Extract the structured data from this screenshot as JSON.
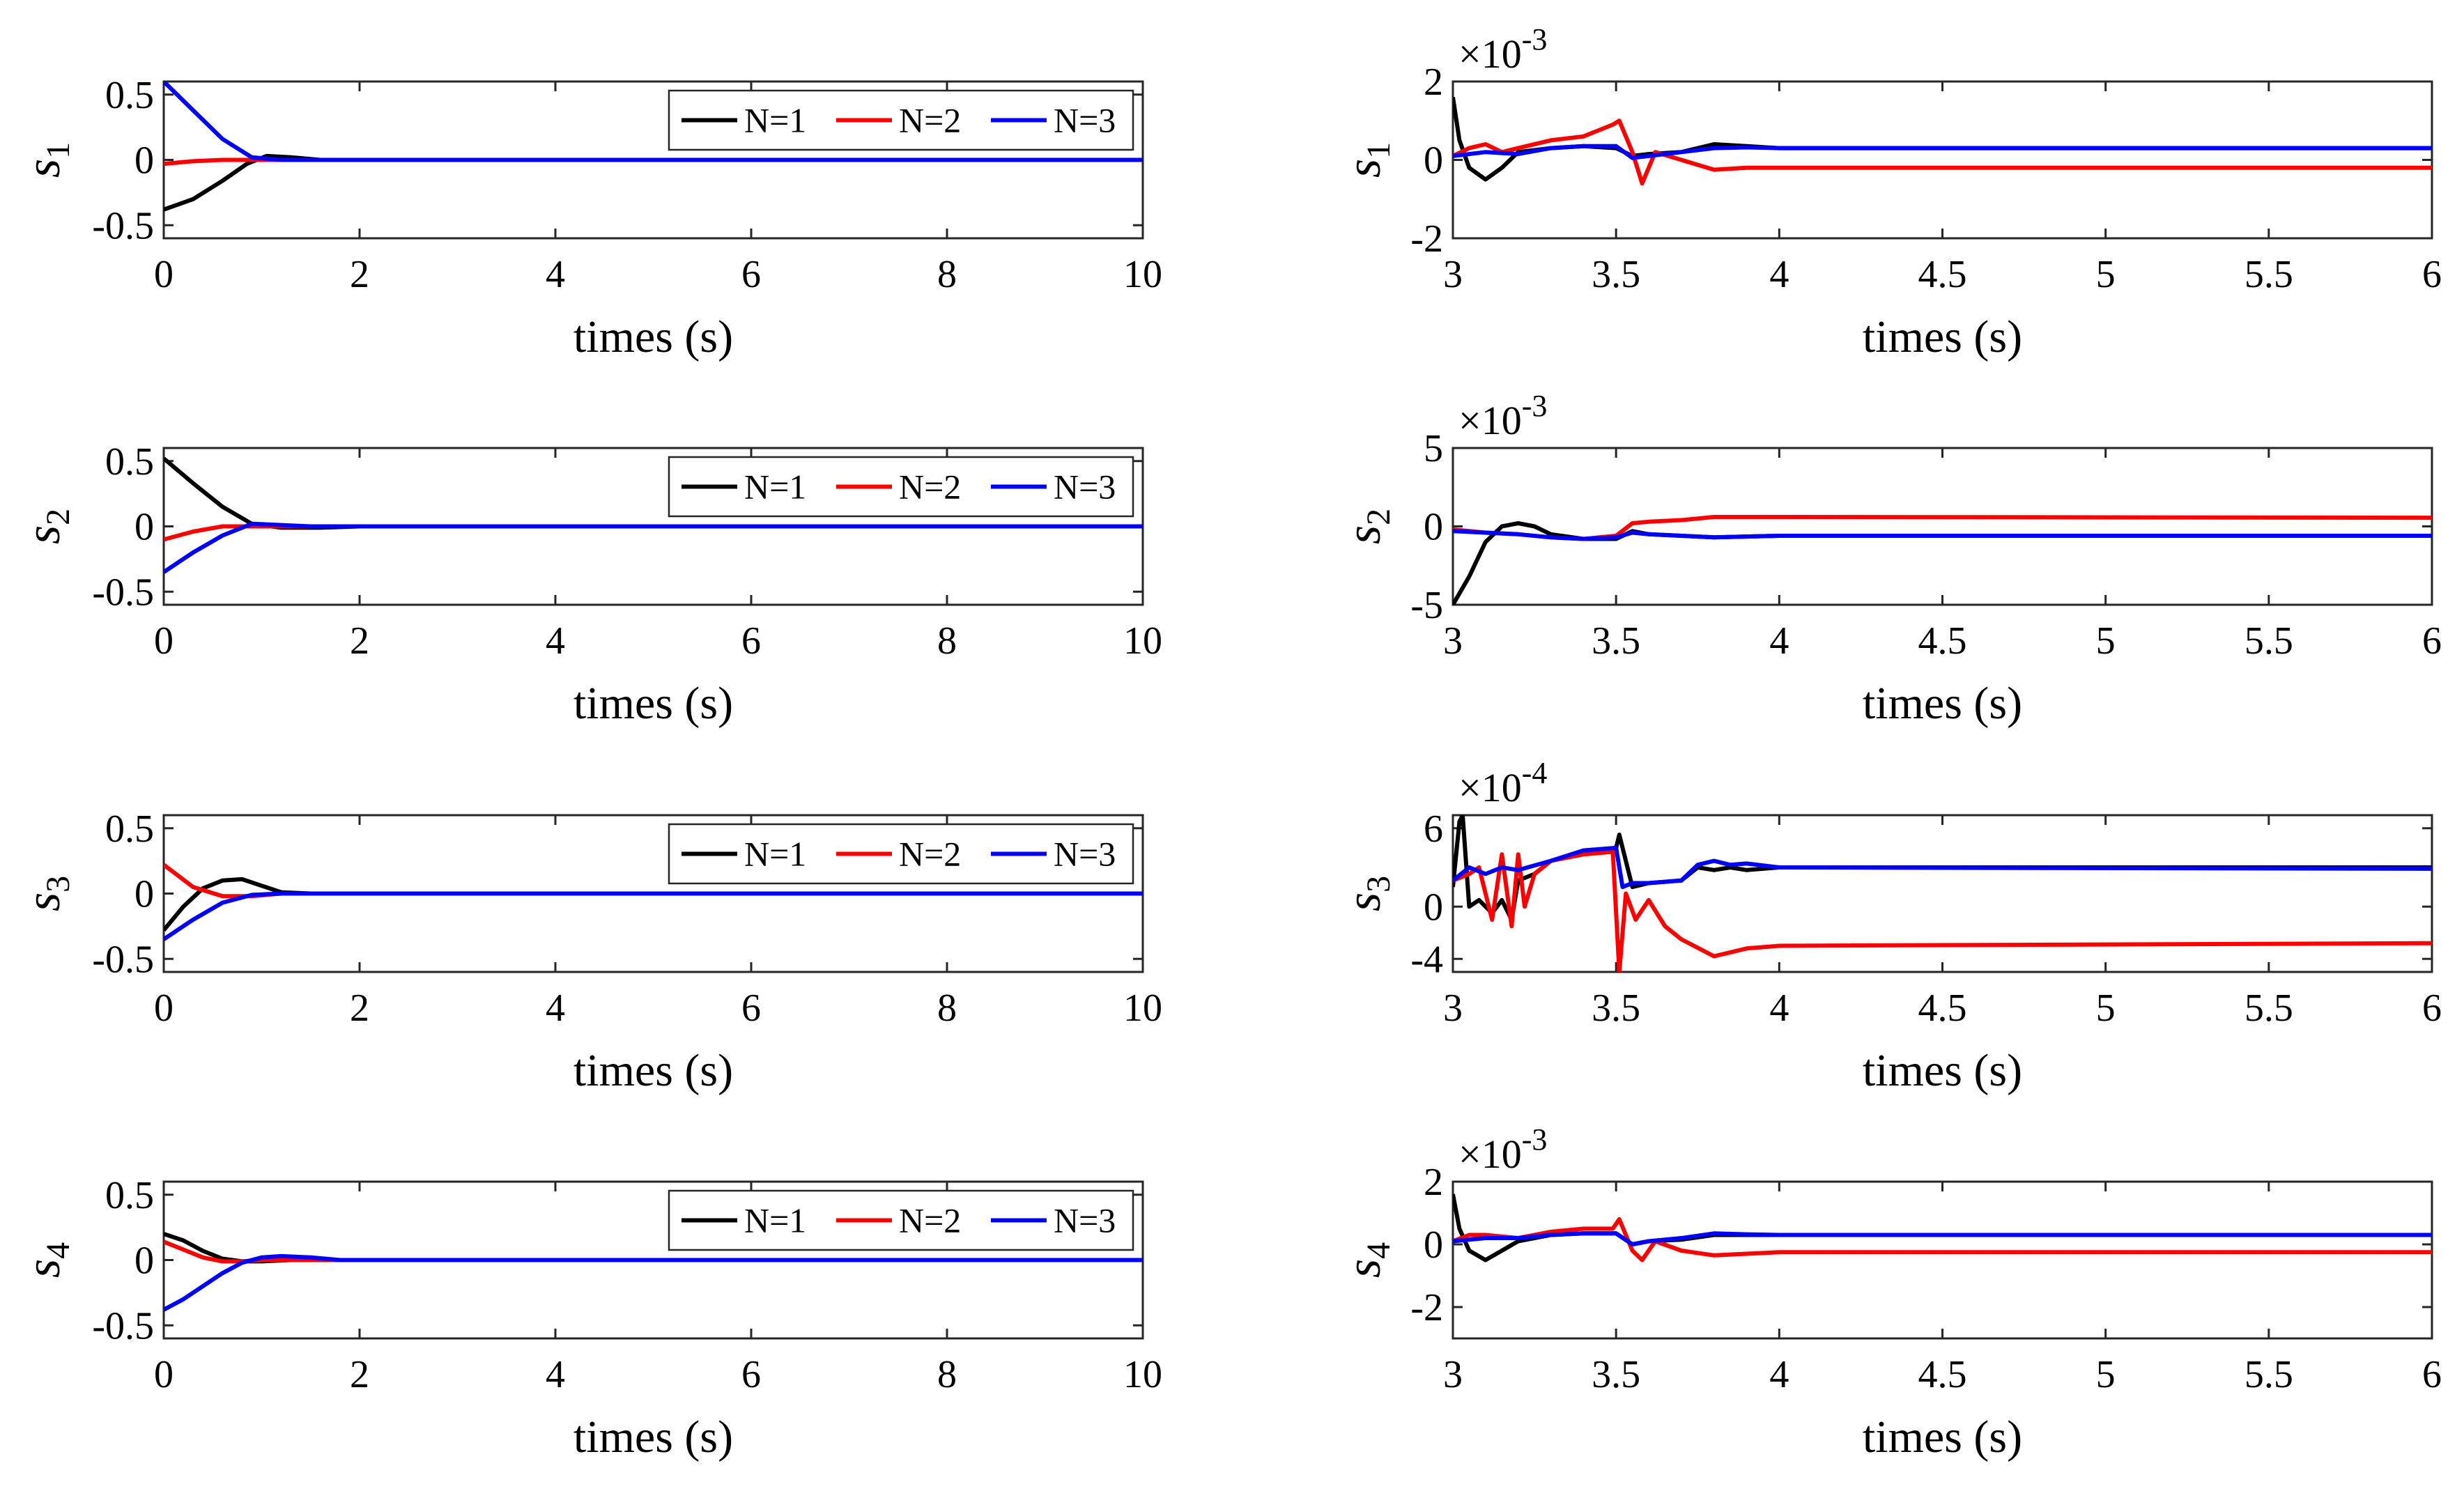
{
  "figure": {
    "x_axis_label": "times (s)",
    "series_names": [
      "N=1",
      "N=2",
      "N=3"
    ],
    "series_colors": [
      "#000000",
      "#ff0000",
      "#0000ff"
    ]
  },
  "chart_data": [
    {
      "type": "line",
      "id": "left-1",
      "ylabel_base": "s",
      "ylabel_sub": "1",
      "xlim": [
        0,
        10
      ],
      "ylim": [
        -0.6,
        0.6
      ],
      "xticks": [
        0,
        2,
        4,
        6,
        8,
        10
      ],
      "xtick_labels": [
        "0",
        "2",
        "4",
        "6",
        "8",
        "10"
      ],
      "yticks": [
        -0.5,
        0,
        0.5
      ],
      "ytick_labels": [
        "-0.5",
        "0",
        "0.5"
      ],
      "exponent_label": "",
      "legend": [
        "N=1",
        "N=2",
        "N=3"
      ],
      "xlabel": "times (s)",
      "series": [
        {
          "name": "N=1",
          "color": "#000000",
          "x": [
            0,
            0.3,
            0.6,
            0.85,
            1.05,
            1.3,
            1.6,
            2,
            10
          ],
          "y": [
            -0.38,
            -0.3,
            -0.16,
            -0.03,
            0.03,
            0.02,
            0.0,
            0.0,
            0.0
          ]
        },
        {
          "name": "N=2",
          "color": "#ff0000",
          "x": [
            0,
            0.3,
            0.6,
            0.9,
            1.2,
            10
          ],
          "y": [
            -0.03,
            -0.01,
            0.0,
            0.0,
            0.0,
            0.0
          ]
        },
        {
          "name": "N=3",
          "color": "#0000ff",
          "x": [
            0,
            0.3,
            0.6,
            0.9,
            1.2,
            1.5,
            10
          ],
          "y": [
            0.6,
            0.38,
            0.16,
            0.02,
            0.0,
            0.0,
            0.0
          ]
        }
      ]
    },
    {
      "type": "line",
      "id": "right-1",
      "ylabel_base": "s",
      "ylabel_sub": "1",
      "xlim": [
        3,
        6
      ],
      "ylim": [
        -2,
        2
      ],
      "xticks": [
        3,
        3.5,
        4,
        4.5,
        5,
        5.5,
        6
      ],
      "xtick_labels": [
        "3",
        "3.5",
        "4",
        "4.5",
        "5",
        "5.5",
        "6"
      ],
      "yticks": [
        -2,
        0,
        2
      ],
      "ytick_labels": [
        "-2",
        "0",
        "2"
      ],
      "exponent_label": "×10",
      "exponent_power": "-3",
      "legend": [],
      "xlabel": "times (s)",
      "series": [
        {
          "name": "N=1",
          "color": "#000000",
          "x": [
            3,
            3.02,
            3.05,
            3.1,
            3.15,
            3.2,
            3.3,
            3.4,
            3.5,
            3.55,
            3.6,
            3.7,
            3.8,
            3.9,
            4,
            6
          ],
          "y": [
            1.6,
            0.5,
            -0.2,
            -0.5,
            -0.2,
            0.2,
            0.3,
            0.35,
            0.3,
            0.1,
            0.15,
            0.2,
            0.4,
            0.35,
            0.3,
            0.3
          ]
        },
        {
          "name": "N=2",
          "color": "#ff0000",
          "x": [
            3,
            3.05,
            3.1,
            3.15,
            3.2,
            3.3,
            3.4,
            3.49,
            3.51,
            3.55,
            3.58,
            3.62,
            3.7,
            3.8,
            3.9,
            4,
            6
          ],
          "y": [
            0.1,
            0.3,
            0.4,
            0.2,
            0.3,
            0.5,
            0.6,
            0.9,
            1.0,
            0.2,
            -0.6,
            0.2,
            0.0,
            -0.25,
            -0.2,
            -0.2,
            -0.2
          ]
        },
        {
          "name": "N=3",
          "color": "#0000ff",
          "x": [
            3,
            3.1,
            3.2,
            3.3,
            3.4,
            3.5,
            3.55,
            3.6,
            3.7,
            3.8,
            3.9,
            4,
            6
          ],
          "y": [
            0.1,
            0.2,
            0.15,
            0.3,
            0.35,
            0.35,
            0.05,
            0.1,
            0.2,
            0.3,
            0.32,
            0.3,
            0.3
          ]
        }
      ]
    },
    {
      "type": "line",
      "id": "left-2",
      "ylabel_base": "s",
      "ylabel_sub": "2",
      "xlim": [
        0,
        10
      ],
      "ylim": [
        -0.6,
        0.6
      ],
      "xticks": [
        0,
        2,
        4,
        6,
        8,
        10
      ],
      "xtick_labels": [
        "0",
        "2",
        "4",
        "6",
        "8",
        "10"
      ],
      "yticks": [
        -0.5,
        0,
        0.5
      ],
      "ytick_labels": [
        "-0.5",
        "0",
        "0.5"
      ],
      "exponent_label": "",
      "legend": [
        "N=1",
        "N=2",
        "N=3"
      ],
      "xlabel": "times (s)",
      "series": [
        {
          "name": "N=1",
          "color": "#000000",
          "x": [
            0,
            0.3,
            0.6,
            0.9,
            1.2,
            1.6,
            2,
            10
          ],
          "y": [
            0.52,
            0.33,
            0.15,
            0.02,
            -0.01,
            -0.01,
            0.0,
            0.0
          ]
        },
        {
          "name": "N=2",
          "color": "#ff0000",
          "x": [
            0,
            0.3,
            0.6,
            0.9,
            1.2,
            10
          ],
          "y": [
            -0.1,
            -0.04,
            0.0,
            0.0,
            0.0,
            0.0
          ]
        },
        {
          "name": "N=3",
          "color": "#0000ff",
          "x": [
            0,
            0.3,
            0.6,
            0.9,
            1.2,
            1.5,
            10
          ],
          "y": [
            -0.35,
            -0.2,
            -0.07,
            0.02,
            0.01,
            0.0,
            0.0
          ]
        }
      ]
    },
    {
      "type": "line",
      "id": "right-2",
      "ylabel_base": "s",
      "ylabel_sub": "2",
      "xlim": [
        3,
        6
      ],
      "ylim": [
        -5,
        5
      ],
      "xticks": [
        3,
        3.5,
        4,
        4.5,
        5,
        5.5,
        6
      ],
      "xtick_labels": [
        "3",
        "3.5",
        "4",
        "4.5",
        "5",
        "5.5",
        "6"
      ],
      "yticks": [
        -5,
        0,
        5
      ],
      "ytick_labels": [
        "-5",
        "0",
        "5"
      ],
      "exponent_label": "×10",
      "exponent_power": "-3",
      "legend": [],
      "xlabel": "times (s)",
      "series": [
        {
          "name": "N=1",
          "color": "#000000",
          "x": [
            3,
            3.05,
            3.1,
            3.15,
            3.2,
            3.25,
            3.3,
            3.4,
            3.5,
            3.55,
            3.6,
            3.7,
            3.8,
            4,
            6
          ],
          "y": [
            -5.0,
            -3.2,
            -1.0,
            0.0,
            0.2,
            0.0,
            -0.5,
            -0.8,
            -0.8,
            -0.3,
            -0.5,
            -0.6,
            -0.7,
            -0.6,
            -0.6
          ]
        },
        {
          "name": "N=2",
          "color": "#ff0000",
          "x": [
            3,
            3.1,
            3.2,
            3.3,
            3.4,
            3.5,
            3.55,
            3.6,
            3.7,
            3.8,
            4,
            6
          ],
          "y": [
            -0.2,
            -0.4,
            -0.5,
            -0.7,
            -0.8,
            -0.6,
            0.2,
            0.3,
            0.4,
            0.6,
            0.6,
            0.55
          ]
        },
        {
          "name": "N=3",
          "color": "#0000ff",
          "x": [
            3,
            3.1,
            3.2,
            3.3,
            3.4,
            3.5,
            3.55,
            3.6,
            3.7,
            3.8,
            4,
            6
          ],
          "y": [
            -0.3,
            -0.4,
            -0.5,
            -0.7,
            -0.8,
            -0.7,
            -0.4,
            -0.5,
            -0.6,
            -0.7,
            -0.6,
            -0.6
          ]
        }
      ]
    },
    {
      "type": "line",
      "id": "left-3",
      "ylabel_base": "s",
      "ylabel_sub": "3",
      "xlim": [
        0,
        10
      ],
      "ylim": [
        -0.6,
        0.6
      ],
      "xticks": [
        0,
        2,
        4,
        6,
        8,
        10
      ],
      "xtick_labels": [
        "0",
        "2",
        "4",
        "6",
        "8",
        "10"
      ],
      "yticks": [
        -0.5,
        0,
        0.5
      ],
      "ytick_labels": [
        "-0.5",
        "0",
        "0.5"
      ],
      "exponent_label": "",
      "legend": [
        "N=1",
        "N=2",
        "N=3"
      ],
      "xlabel": "times (s)",
      "series": [
        {
          "name": "N=1",
          "color": "#000000",
          "x": [
            0,
            0.2,
            0.4,
            0.6,
            0.8,
            1.0,
            1.2,
            1.5,
            10
          ],
          "y": [
            -0.28,
            -0.1,
            0.04,
            0.1,
            0.11,
            0.06,
            0.01,
            0.0,
            0.0
          ]
        },
        {
          "name": "N=2",
          "color": "#ff0000",
          "x": [
            0,
            0.3,
            0.6,
            0.9,
            1.2,
            1.7,
            10
          ],
          "y": [
            0.22,
            0.05,
            -0.02,
            -0.02,
            0.0,
            0.0,
            0.0
          ]
        },
        {
          "name": "N=3",
          "color": "#0000ff",
          "x": [
            0,
            0.3,
            0.6,
            0.9,
            1.2,
            10
          ],
          "y": [
            -0.35,
            -0.2,
            -0.07,
            -0.01,
            0.0,
            0.0
          ]
        }
      ]
    },
    {
      "type": "line",
      "id": "right-3",
      "ylabel_base": "s",
      "ylabel_sub": "3",
      "xlim": [
        3,
        6
      ],
      "ylim": [
        -5,
        7
      ],
      "xticks": [
        3,
        3.5,
        4,
        4.5,
        5,
        5.5,
        6
      ],
      "xtick_labels": [
        "3",
        "3.5",
        "4",
        "4.5",
        "5",
        "5.5",
        "6"
      ],
      "yticks": [
        -4,
        0,
        6
      ],
      "ytick_labels": [
        "-4",
        "0",
        "6"
      ],
      "exponent_label": "×10",
      "exponent_power": "-4",
      "legend": [],
      "xlabel": "times (s)",
      "series": [
        {
          "name": "N=1",
          "color": "#000000",
          "x": [
            3,
            3.02,
            3.03,
            3.05,
            3.08,
            3.12,
            3.15,
            3.18,
            3.2,
            3.25,
            3.3,
            3.4,
            3.5,
            3.51,
            3.55,
            3.6,
            3.7,
            3.75,
            3.8,
            3.85,
            3.9,
            4,
            6
          ],
          "y": [
            1.5,
            6.5,
            7.0,
            0.0,
            0.5,
            -0.5,
            0.5,
            -1.0,
            2.0,
            2.5,
            3.5,
            4.2,
            4.5,
            5.5,
            1.5,
            1.8,
            2.0,
            3.0,
            2.8,
            3.0,
            2.8,
            3.0,
            3.0
          ]
        },
        {
          "name": "N=2",
          "color": "#ff0000",
          "x": [
            3,
            3.05,
            3.08,
            3.12,
            3.15,
            3.18,
            3.2,
            3.22,
            3.25,
            3.3,
            3.4,
            3.49,
            3.51,
            3.53,
            3.56,
            3.6,
            3.65,
            3.7,
            3.8,
            3.9,
            4,
            6
          ],
          "y": [
            2.0,
            2.5,
            3.0,
            -1.0,
            4.0,
            -1.5,
            4.0,
            0.0,
            2.5,
            3.5,
            4.0,
            4.2,
            -5.0,
            1.0,
            -1.0,
            0.5,
            -1.5,
            -2.5,
            -3.8,
            -3.2,
            -3.0,
            -2.8
          ]
        },
        {
          "name": "N=3",
          "color": "#0000ff",
          "x": [
            3,
            3.05,
            3.1,
            3.15,
            3.2,
            3.3,
            3.4,
            3.5,
            3.52,
            3.55,
            3.6,
            3.7,
            3.75,
            3.8,
            3.85,
            3.9,
            4,
            6
          ],
          "y": [
            2.0,
            3.0,
            2.5,
            3.0,
            2.8,
            3.5,
            4.3,
            4.5,
            1.5,
            1.8,
            1.8,
            2.0,
            3.2,
            3.5,
            3.2,
            3.3,
            3.0,
            2.9
          ]
        }
      ]
    },
    {
      "type": "line",
      "id": "left-4",
      "ylabel_base": "s",
      "ylabel_sub": "4",
      "xlim": [
        0,
        10
      ],
      "ylim": [
        -0.6,
        0.6
      ],
      "xticks": [
        0,
        2,
        4,
        6,
        8,
        10
      ],
      "xtick_labels": [
        "0",
        "2",
        "4",
        "6",
        "8",
        "10"
      ],
      "yticks": [
        -0.5,
        0,
        0.5
      ],
      "ytick_labels": [
        "-0.5",
        "0",
        "0.5"
      ],
      "exponent_label": "",
      "legend": [
        "N=1",
        "N=2",
        "N=3"
      ],
      "xlabel": "times (s)",
      "series": [
        {
          "name": "N=1",
          "color": "#000000",
          "x": [
            0,
            0.2,
            0.4,
            0.6,
            0.8,
            1.0,
            1.3,
            1.6,
            2,
            10
          ],
          "y": [
            0.2,
            0.15,
            0.07,
            0.01,
            -0.01,
            -0.01,
            0.0,
            0.0,
            0.0,
            0.0
          ]
        },
        {
          "name": "N=2",
          "color": "#ff0000",
          "x": [
            0,
            0.2,
            0.4,
            0.6,
            0.8,
            1.0,
            1.5,
            10
          ],
          "y": [
            0.14,
            0.08,
            0.02,
            -0.01,
            -0.01,
            0.0,
            0.0,
            0.0
          ]
        },
        {
          "name": "N=3",
          "color": "#0000ff",
          "x": [
            0,
            0.2,
            0.4,
            0.6,
            0.8,
            1.0,
            1.2,
            1.5,
            1.8,
            2.1,
            10
          ],
          "y": [
            -0.38,
            -0.3,
            -0.2,
            -0.1,
            -0.02,
            0.02,
            0.03,
            0.02,
            0.0,
            0.0,
            0.0
          ]
        }
      ]
    },
    {
      "type": "line",
      "id": "right-4",
      "ylabel_base": "s",
      "ylabel_sub": "4",
      "xlim": [
        3,
        6
      ],
      "ylim": [
        -3,
        2
      ],
      "xticks": [
        3,
        3.5,
        4,
        4.5,
        5,
        5.5,
        6
      ],
      "xtick_labels": [
        "3",
        "3.5",
        "4",
        "4.5",
        "5",
        "5.5",
        "6"
      ],
      "yticks": [
        -2,
        0,
        2
      ],
      "ytick_labels": [
        "-2",
        "0",
        "2"
      ],
      "exponent_label": "×10",
      "exponent_power": "-3",
      "legend": [],
      "xlabel": "times (s)",
      "series": [
        {
          "name": "N=1",
          "color": "#000000",
          "x": [
            3,
            3.02,
            3.05,
            3.1,
            3.15,
            3.2,
            3.3,
            3.4,
            3.5,
            3.55,
            3.6,
            3.7,
            3.8,
            4,
            6
          ],
          "y": [
            1.6,
            0.5,
            -0.2,
            -0.5,
            -0.2,
            0.1,
            0.3,
            0.35,
            0.35,
            0.0,
            0.1,
            0.15,
            0.3,
            0.3,
            0.3
          ]
        },
        {
          "name": "N=2",
          "color": "#ff0000",
          "x": [
            3,
            3.05,
            3.1,
            3.2,
            3.3,
            3.4,
            3.49,
            3.51,
            3.55,
            3.58,
            3.62,
            3.7,
            3.8,
            3.9,
            4,
            6
          ],
          "y": [
            0.1,
            0.3,
            0.3,
            0.2,
            0.4,
            0.5,
            0.5,
            0.8,
            -0.2,
            -0.5,
            0.1,
            -0.2,
            -0.35,
            -0.3,
            -0.25,
            -0.25
          ]
        },
        {
          "name": "N=3",
          "color": "#0000ff",
          "x": [
            3,
            3.1,
            3.2,
            3.3,
            3.4,
            3.5,
            3.55,
            3.6,
            3.7,
            3.8,
            3.9,
            4,
            6
          ],
          "y": [
            0.1,
            0.2,
            0.2,
            0.3,
            0.35,
            0.35,
            0.0,
            0.1,
            0.2,
            0.35,
            0.32,
            0.3,
            0.3
          ]
        }
      ]
    }
  ]
}
